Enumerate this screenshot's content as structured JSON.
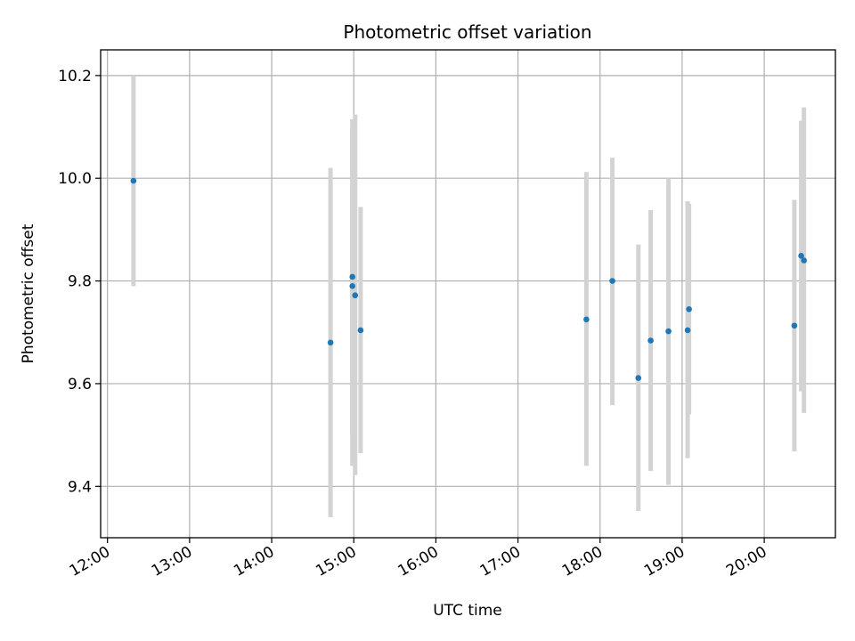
{
  "chart_data": {
    "type": "scatter",
    "title": "Photometric offset variation",
    "xlabel": "UTC time",
    "ylabel": "Photometric offset",
    "xlim": [
      "11:55",
      "20:52"
    ],
    "ylim": [
      9.3,
      10.25
    ],
    "x_ticks": [
      "12:00",
      "13:00",
      "14:00",
      "15:00",
      "16:00",
      "17:00",
      "18:00",
      "19:00",
      "20:00"
    ],
    "y_ticks": [
      9.4,
      9.6,
      9.8,
      10.0,
      10.2
    ],
    "y_tick_labels": [
      "9.4",
      "9.6",
      "9.8",
      "10.0",
      "10.2"
    ],
    "grid": true,
    "series": [
      {
        "marker_color": "#1f77b4",
        "errorbar_color": "#d3d3d3",
        "points": [
          {
            "x": "12:19",
            "y": 9.995,
            "ylow": 9.79,
            "yhigh": 10.2
          },
          {
            "x": "14:43",
            "y": 9.68,
            "ylow": 9.34,
            "yhigh": 10.02
          },
          {
            "x": "14:59",
            "y": 9.808,
            "ylow": 9.5,
            "yhigh": 10.115
          },
          {
            "x": "14:59",
            "y": 9.79,
            "ylow": 9.44,
            "yhigh": 10.1
          },
          {
            "x": "15:01",
            "y": 9.772,
            "ylow": 9.422,
            "yhigh": 10.124
          },
          {
            "x": "15:05",
            "y": 9.704,
            "ylow": 9.465,
            "yhigh": 9.944
          },
          {
            "x": "17:50",
            "y": 9.725,
            "ylow": 9.44,
            "yhigh": 10.012
          },
          {
            "x": "18:09",
            "y": 9.8,
            "ylow": 9.558,
            "yhigh": 10.04
          },
          {
            "x": "18:28",
            "y": 9.611,
            "ylow": 9.352,
            "yhigh": 9.871
          },
          {
            "x": "18:37",
            "y": 9.684,
            "ylow": 9.43,
            "yhigh": 9.938
          },
          {
            "x": "18:50",
            "y": 9.702,
            "ylow": 9.403,
            "yhigh": 10.0
          },
          {
            "x": "19:04",
            "y": 9.704,
            "ylow": 9.455,
            "yhigh": 9.955
          },
          {
            "x": "19:05",
            "y": 9.745,
            "ylow": 9.54,
            "yhigh": 9.95
          },
          {
            "x": "20:22",
            "y": 9.713,
            "ylow": 9.468,
            "yhigh": 9.958
          },
          {
            "x": "20:27",
            "y": 9.849,
            "ylow": 9.585,
            "yhigh": 10.112
          },
          {
            "x": "20:29",
            "y": 9.84,
            "ylow": 9.543,
            "yhigh": 10.138
          }
        ]
      }
    ]
  }
}
